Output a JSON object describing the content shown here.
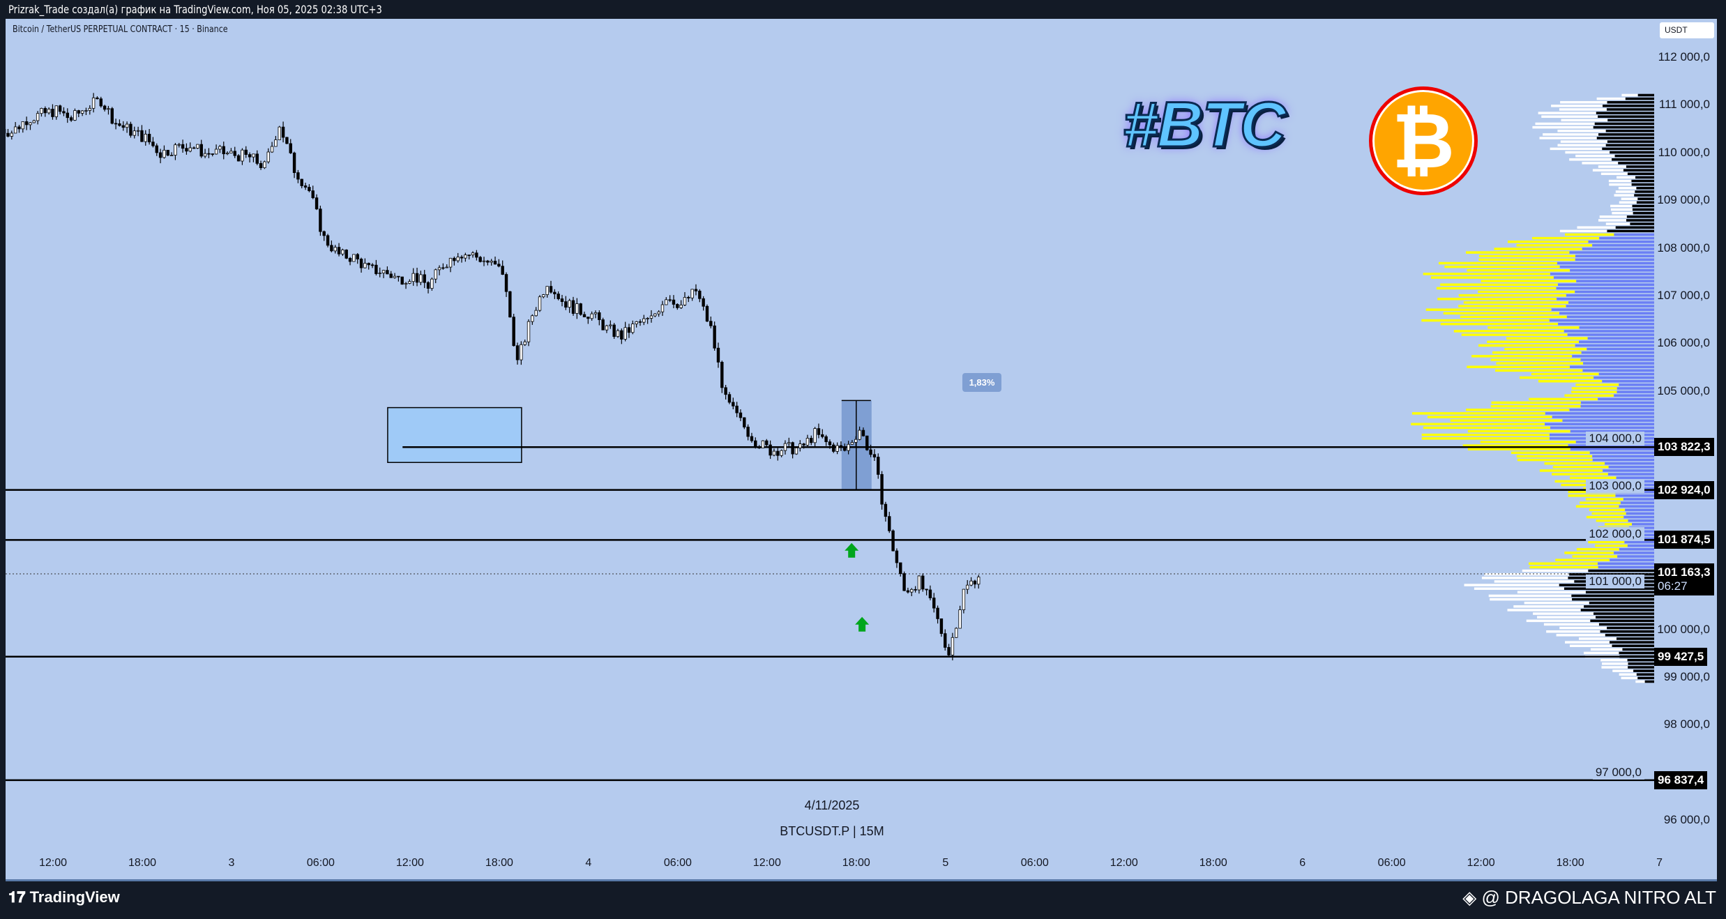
{
  "header": {
    "title": "Prizrak_Trade создал(а) график на TradingView.com, Ноя 05, 2025 02:38 UTC+3"
  },
  "symbol_line": "Bitcoin / TetherUS PERPETUAL CONTRACT · 15 · Binance",
  "currency_button": "USDT",
  "center_date": "4/11/2025",
  "center_ticker": "BTCUSDT.P | 15M",
  "logo_text": "#BTC",
  "footer": {
    "brand": "TradingView",
    "author": "@ DRAGOLAGA NITRO ALT"
  },
  "colors": {
    "background": "#b5cbee",
    "candle_up": "#ffffff",
    "candle_down": "#000000",
    "vp_value_area_up": "#6b7ff5",
    "vp_value_area_down": "#ffff00",
    "vp_outside_up": "#000000",
    "vp_outside_down": "#ffffff",
    "arrow": "#00a61c",
    "range_box": "#9fcaf7"
  },
  "chart_data": {
    "type": "candlestick",
    "interval": "15M",
    "ylim": [
      95500,
      112500
    ],
    "y_ticks": [
      "112 000,0",
      "111 000,0",
      "110 000,0",
      "109 000,0",
      "108 000,0",
      "107 000,0",
      "106 000,0",
      "105 000,0",
      "104 000,0",
      "103 000,0",
      "102 000,0",
      "101 000,0",
      "100 000,0",
      "99 000,0",
      "98 000,0",
      "97 000,0",
      "96 000,0"
    ],
    "y_tick_values": [
      112000,
      111000,
      110000,
      109000,
      108000,
      107000,
      106000,
      105000,
      104000,
      103000,
      102000,
      101000,
      100000,
      99000,
      98000,
      97000,
      96000
    ],
    "x_ticks": [
      "12:00",
      "18:00",
      "3",
      "06:00",
      "12:00",
      "18:00",
      "4",
      "06:00",
      "12:00",
      "18:00",
      "5",
      "06:00",
      "12:00",
      "18:00",
      "6",
      "06:00",
      "12:00",
      "18:00",
      "7"
    ],
    "x_tick_hours": [
      12,
      18,
      24,
      30,
      36,
      42,
      48,
      54,
      60,
      66,
      72,
      78,
      84,
      90,
      96,
      102,
      108,
      114,
      120
    ],
    "hourly_closes_from_nov2_0900": [
      110430,
      110700,
      110800,
      110880,
      110700,
      110950,
      111100,
      110620,
      110450,
      110300,
      109990,
      110100,
      110150,
      109980,
      110000,
      109950,
      109900,
      109700,
      110600,
      109650,
      109200,
      108200,
      107850,
      107800,
      107550,
      107500,
      107350,
      107420,
      107200,
      107650,
      107900,
      107850,
      107700,
      107500,
      105600,
      106600,
      107300,
      106900,
      106700,
      106600,
      106300,
      106150,
      106400,
      106500,
      107000,
      106800,
      107100,
      106300,
      104800,
      104350,
      103950,
      103750,
      103800,
      103780,
      104100,
      103850,
      103750,
      104200,
      103500,
      102000,
      100800,
      101000,
      100400,
      99500,
      100800,
      101160
    ],
    "levels": [
      {
        "price": 103822.3,
        "label": "103 822,3"
      },
      {
        "price": 102924.0,
        "label": "102 924,0"
      },
      {
        "price": 101874.5,
        "label": "101 874,5"
      },
      {
        "price": 99427.5,
        "label": "99 427,5"
      },
      {
        "price": 96837.4,
        "label": "96 837,4"
      }
    ],
    "last_price": {
      "price": 101163.3,
      "label": "101 163,3",
      "countdown": "06:27"
    },
    "range_box": {
      "start_hour": 25.5,
      "end_hour": 34.5,
      "high": 104650,
      "low": 103500
    },
    "measure": {
      "hour": 57,
      "from": 102924.0,
      "to": 104800,
      "label": "1,83%"
    },
    "arrows": [
      {
        "hour": 57.3,
        "price": 101650
      },
      {
        "hour": 58,
        "price": 100100
      }
    ],
    "volume_profile": {
      "prices": [
        111200,
        111000,
        110500,
        110000,
        109500,
        109000,
        108500,
        108000,
        107500,
        107000,
        106500,
        106000,
        105500,
        105000,
        104500,
        104000,
        103500,
        103000,
        102500,
        102000,
        101500,
        101000,
        100500,
        100000,
        99500,
        99000,
        98900
      ],
      "relative_volume": [
        0.15,
        0.45,
        0.5,
        0.4,
        0.2,
        0.15,
        0.25,
        0.7,
        0.95,
        0.85,
        0.95,
        0.7,
        0.75,
        0.3,
        1.0,
        0.95,
        0.5,
        0.38,
        0.3,
        0.2,
        0.4,
        0.8,
        0.62,
        0.45,
        0.3,
        0.15,
        0.08
      ],
      "value_area": [
        101300,
        108300
      ]
    }
  }
}
